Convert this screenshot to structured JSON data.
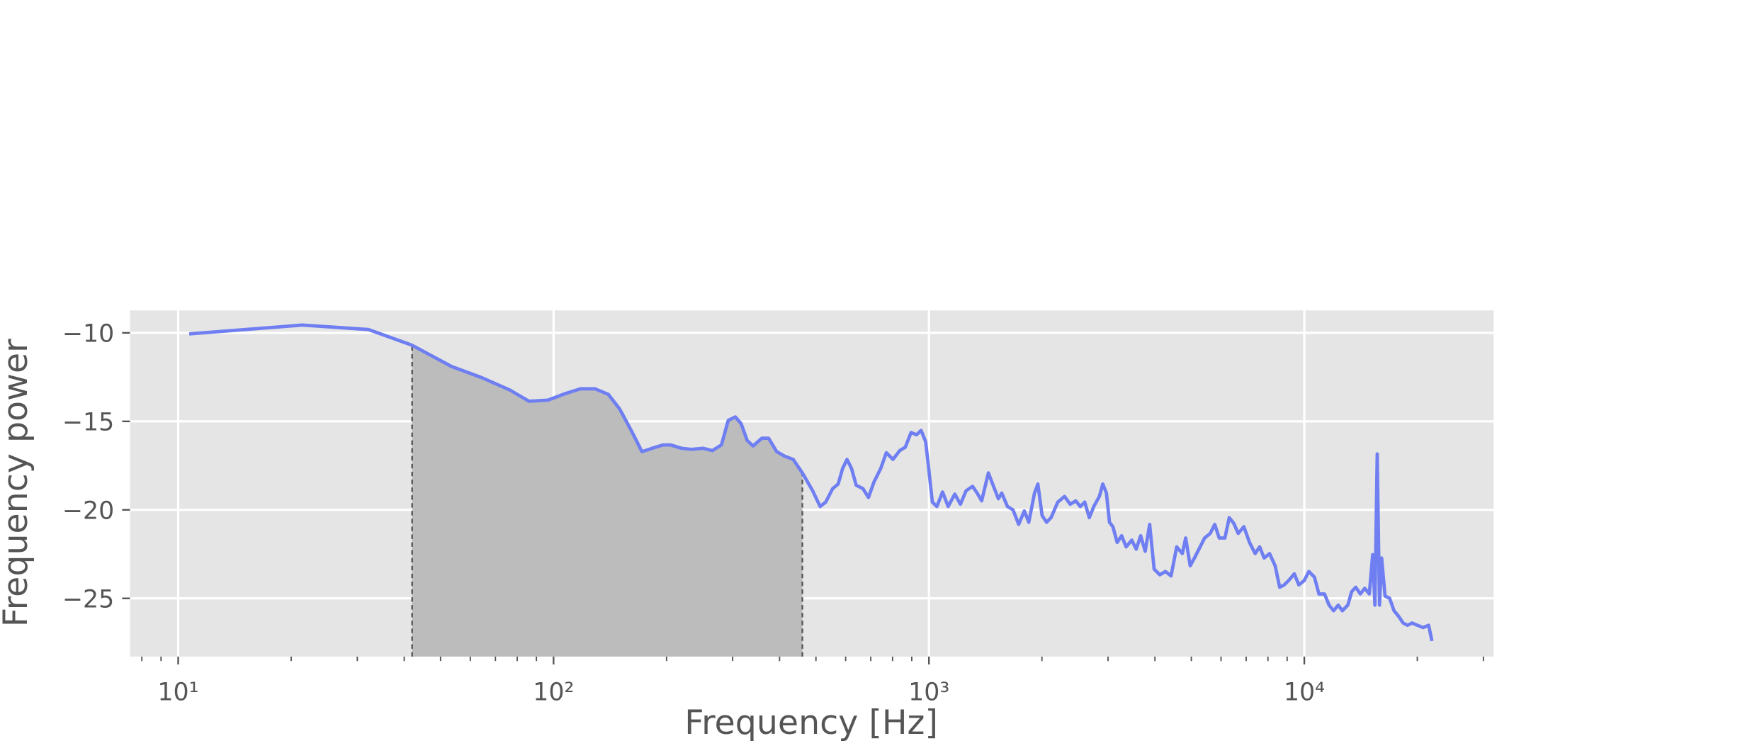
{
  "chart_data": {
    "type": "line",
    "xlabel": "Frequency [Hz]",
    "ylabel": "Frequency power",
    "xscale": "log",
    "grid": true,
    "color": "#6f7ff2",
    "shade_color": "#bcbcbc",
    "xlim": [
      7.44,
      31950
    ],
    "ylim": [
      -28.29,
      -8.73
    ],
    "xticks": [
      {
        "value": 10,
        "label": "10¹"
      },
      {
        "value": 100,
        "label": "10²"
      },
      {
        "value": 1000,
        "label": "10³"
      },
      {
        "value": 10000,
        "label": "10⁴"
      }
    ],
    "xminorticks": [
      8,
      9,
      20,
      30,
      40,
      50,
      60,
      70,
      80,
      90,
      200,
      300,
      400,
      500,
      600,
      700,
      800,
      900,
      2000,
      3000,
      4000,
      5000,
      6000,
      7000,
      8000,
      9000,
      20000,
      30000
    ],
    "yticks": [
      {
        "value": -10,
        "label": "−10"
      },
      {
        "value": -15,
        "label": "−15"
      },
      {
        "value": -20,
        "label": "−20"
      },
      {
        "value": -25,
        "label": "−25"
      }
    ],
    "shade": [
      42,
      460
    ],
    "x": [
      10.7,
      21.4,
      32.1,
      42.0,
      53.5,
      64.4,
      76.5,
      86.0,
      96.6,
      107.8,
      118,
      129,
      140,
      150,
      161,
      172,
      183,
      196,
      205,
      219,
      233,
      250,
      265,
      280,
      292,
      305,
      316,
      328,
      340,
      359,
      374,
      393,
      412,
      435,
      460,
      490,
      513,
      531,
      554,
      573,
      589,
      605,
      622,
      640,
      667,
      690,
      714,
      744,
      770,
      802,
      836,
      865,
      896,
      927,
      953,
      980,
      1000,
      1021,
      1050,
      1087,
      1125,
      1172,
      1213,
      1256,
      1307,
      1344,
      1382,
      1440,
      1490,
      1531,
      1563,
      1619,
      1675,
      1734,
      1795,
      1845,
      1911,
      1951,
      2002,
      2058,
      2115,
      2204,
      2297,
      2378,
      2461,
      2530,
      2601,
      2674,
      2749,
      2845,
      2905,
      2970,
      3027,
      3091,
      3173,
      3261,
      3352,
      3470,
      3566,
      3665,
      3768,
      3873,
      3981,
      4121,
      4266,
      4416,
      4571,
      4732,
      4830,
      4966,
      5097,
      5240,
      5424,
      5615,
      5773,
      5934,
      6143,
      6310,
      6487,
      6668,
      6903,
      7145,
      7396,
      7604,
      7817,
      8080,
      8363,
      8597,
      8838,
      9086,
      9405,
      9669,
      10000,
      10280,
      10640,
      10940,
      11320,
      11640,
      11970,
      12310,
      12630,
      13060,
      13370,
      13710,
      14100,
      14490,
      14900,
      15210,
      15420,
      15640,
      15860,
      16070,
      16410,
      16870,
      17340,
      17830,
      18330,
      18840,
      19370,
      20010,
      20720,
      21440,
      21880
    ],
    "values": [
      -10.06,
      -9.56,
      -9.81,
      -10.7,
      -11.9,
      -12.53,
      -13.23,
      -13.86,
      -13.8,
      -13.42,
      -13.16,
      -13.16,
      -13.48,
      -14.3,
      -15.51,
      -16.71,
      -16.52,
      -16.33,
      -16.33,
      -16.52,
      -16.58,
      -16.52,
      -16.65,
      -16.33,
      -14.94,
      -14.75,
      -15.13,
      -16.08,
      -16.39,
      -15.95,
      -15.95,
      -16.71,
      -16.96,
      -17.15,
      -17.91,
      -18.92,
      -19.81,
      -19.56,
      -18.8,
      -18.54,
      -17.66,
      -17.15,
      -17.66,
      -18.61,
      -18.8,
      -19.3,
      -18.42,
      -17.66,
      -16.77,
      -17.15,
      -16.65,
      -16.46,
      -15.63,
      -15.76,
      -15.51,
      -16.14,
      -17.78,
      -19.56,
      -19.81,
      -18.99,
      -19.81,
      -19.11,
      -19.68,
      -18.92,
      -18.67,
      -19.05,
      -19.49,
      -17.91,
      -18.73,
      -19.37,
      -19.05,
      -19.81,
      -20.0,
      -20.82,
      -20.06,
      -20.7,
      -19.05,
      -18.54,
      -20.32,
      -20.7,
      -20.44,
      -19.56,
      -19.24,
      -19.68,
      -19.49,
      -19.81,
      -19.56,
      -20.44,
      -19.81,
      -19.24,
      -18.54,
      -19.05,
      -20.7,
      -20.95,
      -21.84,
      -21.46,
      -22.09,
      -21.71,
      -22.22,
      -21.46,
      -22.34,
      -20.82,
      -23.35,
      -23.67,
      -23.48,
      -23.73,
      -22.09,
      -22.47,
      -21.59,
      -23.16,
      -22.72,
      -22.22,
      -21.59,
      -21.33,
      -20.82,
      -21.59,
      -21.59,
      -20.44,
      -20.76,
      -21.33,
      -20.95,
      -21.84,
      -22.47,
      -22.09,
      -22.72,
      -22.47,
      -23.16,
      -24.37,
      -24.24,
      -23.99,
      -23.61,
      -24.24,
      -23.99,
      -23.48,
      -23.8,
      -24.75,
      -24.75,
      -25.38,
      -25.7,
      -25.38,
      -25.7,
      -25.38,
      -24.62,
      -24.37,
      -24.75,
      -24.43,
      -24.75,
      -22.53,
      -25.38,
      -16.84,
      -25.38,
      -22.72,
      -24.87,
      -24.99,
      -25.7,
      -26.01,
      -26.39,
      -26.52,
      -26.39,
      -26.52,
      -26.65,
      -26.52,
      -27.41
    ]
  }
}
